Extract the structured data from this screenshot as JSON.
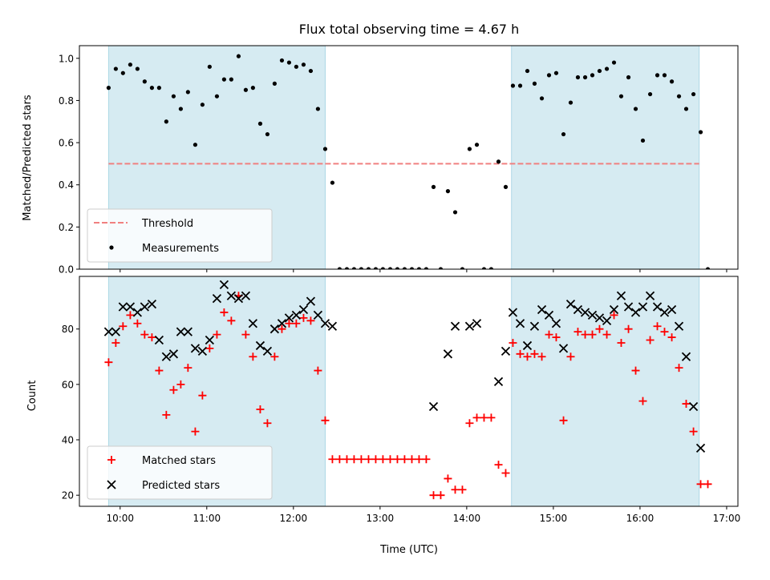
{
  "chart_data": [
    {
      "type": "scatter",
      "title": "Flux total observing time = 4.67 h",
      "ylabel": "Matched/Predicted stars",
      "xlabel": "",
      "x_unit": "hours UTC",
      "xlim": [
        9.53,
        17.13
      ],
      "ylim": [
        0,
        1.06
      ],
      "yticks": [
        0.0,
        0.2,
        0.4,
        0.6,
        0.8,
        1.0
      ],
      "ytick_labels": [
        "0.0",
        "0.2",
        "0.4",
        "0.6",
        "0.8",
        "1.0"
      ],
      "shaded_intervals": [
        [
          9.867,
          12.367
        ],
        [
          14.517,
          16.683
        ]
      ],
      "threshold": {
        "name": "Threshold",
        "value": 0.5,
        "x_range": [
          9.867,
          16.683
        ],
        "color": "#f08080"
      },
      "legend_position": "lower-left",
      "series": [
        {
          "name": "Measurements",
          "color": "#000000",
          "marker": "dot",
          "points": [
            [
              9.867,
              0.86
            ],
            [
              9.95,
              0.95
            ],
            [
              10.033,
              0.93
            ],
            [
              10.117,
              0.97
            ],
            [
              10.2,
              0.95
            ],
            [
              10.283,
              0.89
            ],
            [
              10.367,
              0.86
            ],
            [
              10.45,
              0.86
            ],
            [
              10.533,
              0.7
            ],
            [
              10.617,
              0.82
            ],
            [
              10.7,
              0.76
            ],
            [
              10.783,
              0.84
            ],
            [
              10.867,
              0.59
            ],
            [
              10.95,
              0.78
            ],
            [
              11.033,
              0.96
            ],
            [
              11.117,
              0.82
            ],
            [
              11.2,
              0.9
            ],
            [
              11.283,
              0.9
            ],
            [
              11.367,
              1.01
            ],
            [
              11.45,
              0.85
            ],
            [
              11.533,
              0.86
            ],
            [
              11.617,
              0.69
            ],
            [
              11.7,
              0.64
            ],
            [
              11.783,
              0.88
            ],
            [
              11.867,
              0.99
            ],
            [
              11.95,
              0.98
            ],
            [
              12.033,
              0.96
            ],
            [
              12.117,
              0.97
            ],
            [
              12.2,
              0.94
            ],
            [
              12.283,
              0.76
            ],
            [
              12.367,
              0.57
            ],
            [
              12.45,
              0.41
            ],
            [
              12.533,
              0
            ],
            [
              12.617,
              0
            ],
            [
              12.7,
              0
            ],
            [
              12.783,
              0
            ],
            [
              12.867,
              0
            ],
            [
              12.95,
              0
            ],
            [
              13.033,
              0
            ],
            [
              13.117,
              0
            ],
            [
              13.2,
              0
            ],
            [
              13.283,
              0
            ],
            [
              13.367,
              0
            ],
            [
              13.45,
              0
            ],
            [
              13.533,
              0
            ],
            [
              13.617,
              0.39
            ],
            [
              13.7,
              0
            ],
            [
              13.783,
              0.37
            ],
            [
              13.867,
              0.27
            ],
            [
              13.95,
              0
            ],
            [
              14.033,
              0.57
            ],
            [
              14.117,
              0.59
            ],
            [
              14.2,
              0
            ],
            [
              14.283,
              0
            ],
            [
              14.367,
              0.51
            ],
            [
              14.45,
              0.39
            ],
            [
              14.533,
              0.87
            ],
            [
              14.617,
              0.87
            ],
            [
              14.7,
              0.94
            ],
            [
              14.783,
              0.88
            ],
            [
              14.867,
              0.81
            ],
            [
              14.95,
              0.92
            ],
            [
              15.033,
              0.93
            ],
            [
              15.117,
              0.64
            ],
            [
              15.2,
              0.79
            ],
            [
              15.283,
              0.91
            ],
            [
              15.367,
              0.91
            ],
            [
              15.45,
              0.92
            ],
            [
              15.533,
              0.94
            ],
            [
              15.617,
              0.95
            ],
            [
              15.7,
              0.98
            ],
            [
              15.783,
              0.82
            ],
            [
              15.867,
              0.91
            ],
            [
              15.95,
              0.76
            ],
            [
              16.033,
              0.61
            ],
            [
              16.117,
              0.83
            ],
            [
              16.2,
              0.92
            ],
            [
              16.283,
              0.92
            ],
            [
              16.367,
              0.89
            ],
            [
              16.45,
              0.82
            ],
            [
              16.533,
              0.76
            ],
            [
              16.617,
              0.83
            ],
            [
              16.7,
              0.65
            ],
            [
              16.783,
              0
            ]
          ]
        }
      ]
    },
    {
      "type": "scatter",
      "title": "",
      "ylabel": "Count",
      "xlabel": "Time (UTC)",
      "x_unit": "hours UTC",
      "xlim": [
        9.53,
        17.13
      ],
      "ylim": [
        16,
        99
      ],
      "yticks": [
        20,
        40,
        60,
        80
      ],
      "ytick_labels": [
        "20",
        "40",
        "60",
        "80"
      ],
      "xticks": [
        10,
        11,
        12,
        13,
        14,
        15,
        16,
        17
      ],
      "xtick_labels": [
        "10:00",
        "11:00",
        "12:00",
        "13:00",
        "14:00",
        "15:00",
        "16:00",
        "17:00"
      ],
      "shaded_intervals": [
        [
          9.867,
          12.367
        ],
        [
          14.517,
          16.683
        ]
      ],
      "legend_position": "lower-left",
      "series": [
        {
          "name": "Matched stars",
          "color": "#ff0000",
          "marker": "plus",
          "points": [
            [
              9.867,
              68
            ],
            [
              9.95,
              75
            ],
            [
              10.033,
              81
            ],
            [
              10.117,
              85
            ],
            [
              10.2,
              82
            ],
            [
              10.283,
              78
            ],
            [
              10.367,
              77
            ],
            [
              10.45,
              65
            ],
            [
              10.533,
              49
            ],
            [
              10.617,
              58
            ],
            [
              10.7,
              60
            ],
            [
              10.783,
              66
            ],
            [
              10.867,
              43
            ],
            [
              10.95,
              56
            ],
            [
              11.033,
              73
            ],
            [
              11.117,
              78
            ],
            [
              11.2,
              86
            ],
            [
              11.283,
              83
            ],
            [
              11.367,
              92
            ],
            [
              11.45,
              78
            ],
            [
              11.533,
              70
            ],
            [
              11.617,
              51
            ],
            [
              11.7,
              46
            ],
            [
              11.783,
              70
            ],
            [
              11.867,
              80
            ],
            [
              11.95,
              82
            ],
            [
              12.033,
              82
            ],
            [
              12.117,
              84
            ],
            [
              12.2,
              83
            ],
            [
              12.283,
              65
            ],
            [
              12.367,
              47
            ],
            [
              12.45,
              33
            ],
            [
              12.533,
              33
            ],
            [
              12.617,
              33
            ],
            [
              12.7,
              33
            ],
            [
              12.783,
              33
            ],
            [
              12.867,
              33
            ],
            [
              12.95,
              33
            ],
            [
              13.033,
              33
            ],
            [
              13.117,
              33
            ],
            [
              13.2,
              33
            ],
            [
              13.283,
              33
            ],
            [
              13.367,
              33
            ],
            [
              13.45,
              33
            ],
            [
              13.533,
              33
            ],
            [
              13.617,
              20
            ],
            [
              13.7,
              20
            ],
            [
              13.783,
              26
            ],
            [
              13.867,
              22
            ],
            [
              13.95,
              22
            ],
            [
              14.033,
              46
            ],
            [
              14.117,
              48
            ],
            [
              14.2,
              48
            ],
            [
              14.283,
              48
            ],
            [
              14.367,
              31
            ],
            [
              14.45,
              28
            ],
            [
              14.533,
              75
            ],
            [
              14.617,
              71
            ],
            [
              14.7,
              70
            ],
            [
              14.783,
              71
            ],
            [
              14.867,
              70
            ],
            [
              14.95,
              78
            ],
            [
              15.033,
              77
            ],
            [
              15.117,
              47
            ],
            [
              15.2,
              70
            ],
            [
              15.283,
              79
            ],
            [
              15.367,
              78
            ],
            [
              15.45,
              78
            ],
            [
              15.533,
              80
            ],
            [
              15.617,
              78
            ],
            [
              15.7,
              85
            ],
            [
              15.783,
              75
            ],
            [
              15.867,
              80
            ],
            [
              15.95,
              65
            ],
            [
              16.033,
              54
            ],
            [
              16.117,
              76
            ],
            [
              16.2,
              81
            ],
            [
              16.283,
              79
            ],
            [
              16.367,
              77
            ],
            [
              16.45,
              66
            ],
            [
              16.533,
              53
            ],
            [
              16.617,
              43
            ],
            [
              16.7,
              24
            ],
            [
              16.783,
              24
            ]
          ]
        },
        {
          "name": "Predicted stars",
          "color": "#000000",
          "marker": "x",
          "points": [
            [
              9.867,
              79
            ],
            [
              9.95,
              79
            ],
            [
              10.033,
              88
            ],
            [
              10.117,
              88
            ],
            [
              10.2,
              86
            ],
            [
              10.283,
              88
            ],
            [
              10.367,
              89
            ],
            [
              10.45,
              76
            ],
            [
              10.533,
              70
            ],
            [
              10.617,
              71
            ],
            [
              10.7,
              79
            ],
            [
              10.783,
              79
            ],
            [
              10.867,
              73
            ],
            [
              10.95,
              72
            ],
            [
              11.033,
              76
            ],
            [
              11.117,
              91
            ],
            [
              11.2,
              96
            ],
            [
              11.283,
              92
            ],
            [
              11.367,
              91
            ],
            [
              11.45,
              92
            ],
            [
              11.533,
              82
            ],
            [
              11.617,
              74
            ],
            [
              11.7,
              72
            ],
            [
              11.783,
              80
            ],
            [
              11.867,
              82
            ],
            [
              11.95,
              84
            ],
            [
              12.033,
              85
            ],
            [
              12.117,
              87
            ],
            [
              12.2,
              90
            ],
            [
              12.283,
              85
            ],
            [
              12.367,
              82
            ],
            [
              12.45,
              81
            ],
            [
              13.617,
              52
            ],
            [
              13.783,
              71
            ],
            [
              13.867,
              81
            ],
            [
              14.033,
              81
            ],
            [
              14.117,
              82
            ],
            [
              14.367,
              61
            ],
            [
              14.45,
              72
            ],
            [
              14.533,
              86
            ],
            [
              14.617,
              82
            ],
            [
              14.7,
              74
            ],
            [
              14.783,
              81
            ],
            [
              14.867,
              87
            ],
            [
              14.95,
              85
            ],
            [
              15.033,
              82
            ],
            [
              15.117,
              73
            ],
            [
              15.2,
              89
            ],
            [
              15.283,
              87
            ],
            [
              15.367,
              86
            ],
            [
              15.45,
              85
            ],
            [
              15.533,
              84
            ],
            [
              15.617,
              83
            ],
            [
              15.7,
              87
            ],
            [
              15.783,
              92
            ],
            [
              15.867,
              88
            ],
            [
              15.95,
              86
            ],
            [
              16.033,
              88
            ],
            [
              16.117,
              92
            ],
            [
              16.2,
              88
            ],
            [
              16.283,
              86
            ],
            [
              16.367,
              87
            ],
            [
              16.45,
              81
            ],
            [
              16.533,
              70
            ],
            [
              16.617,
              52
            ],
            [
              16.7,
              37
            ]
          ]
        }
      ]
    }
  ]
}
